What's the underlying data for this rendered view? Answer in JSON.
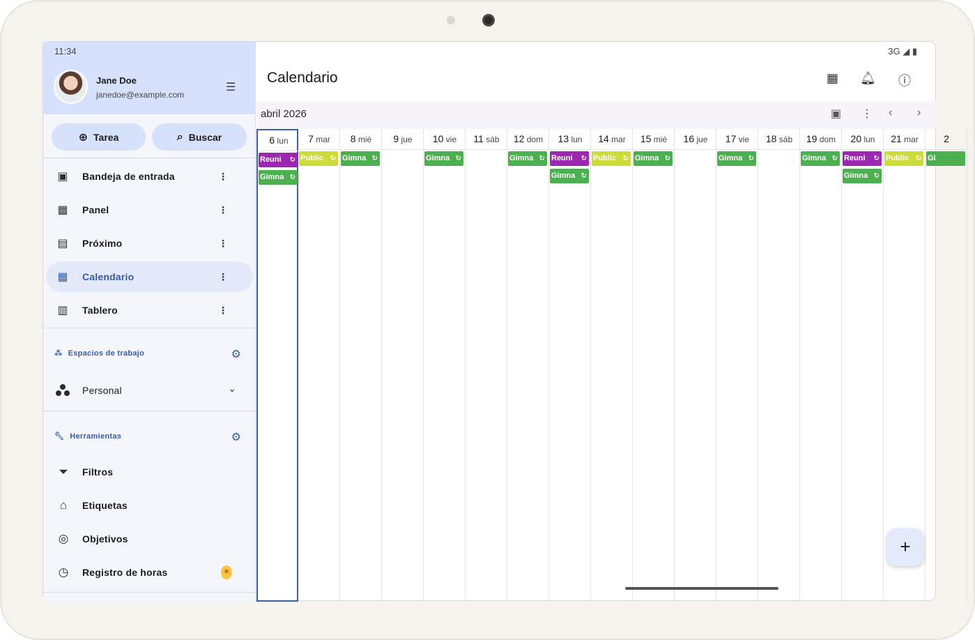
{
  "status": {
    "time": "11:34",
    "network": "3G"
  },
  "user": {
    "name": "Jane Doe",
    "email": "janedoe@example.com"
  },
  "actions": {
    "task": "Tarea",
    "search": "Buscar"
  },
  "nav": [
    {
      "label": "Bandeja de entrada",
      "icon": "inbox-icon"
    },
    {
      "label": "Panel",
      "icon": "dashboard-icon"
    },
    {
      "label": "Próximo",
      "icon": "upcoming-icon"
    },
    {
      "label": "Calendario",
      "icon": "calendar-icon",
      "active": true
    },
    {
      "label": "Tablero",
      "icon": "board-icon"
    }
  ],
  "workspaces": {
    "heading": "Espacios de trabajo",
    "current": "Personal"
  },
  "tools": {
    "heading": "Herramientas",
    "items": [
      {
        "label": "Filtros",
        "icon": "filter-icon"
      },
      {
        "label": "Etiquetas",
        "icon": "tag-icon"
      },
      {
        "label": "Objetivos",
        "icon": "target-icon"
      },
      {
        "label": "Registro de horas",
        "icon": "clock-icon"
      }
    ]
  },
  "main": {
    "title": "Calendario",
    "month": "abril 2026"
  },
  "colors": {
    "meeting": "#9c27b0",
    "public": "#cddc39",
    "gym": "#4caf50",
    "accent": "#3a5ba8"
  },
  "days": [
    {
      "num": "6",
      "dow": "lun",
      "events": [
        "Reuni",
        "Gimna"
      ]
    },
    {
      "num": "7",
      "dow": "mar",
      "events": [
        "Public"
      ]
    },
    {
      "num": "8",
      "dow": "mié",
      "events": [
        "Gimna"
      ]
    },
    {
      "num": "9",
      "dow": "jue",
      "events": []
    },
    {
      "num": "10",
      "dow": "vie",
      "events": [
        "Gimna"
      ]
    },
    {
      "num": "11",
      "dow": "sáb",
      "events": []
    },
    {
      "num": "12",
      "dow": "dom",
      "events": [
        "Gimna"
      ]
    },
    {
      "num": "13",
      "dow": "lun",
      "events": [
        "Reuni",
        "Gimna"
      ]
    },
    {
      "num": "14",
      "dow": "mar",
      "events": [
        "Public"
      ]
    },
    {
      "num": "15",
      "dow": "mié",
      "events": [
        "Gimna"
      ]
    },
    {
      "num": "16",
      "dow": "jue",
      "events": []
    },
    {
      "num": "17",
      "dow": "vie",
      "events": [
        "Gimna"
      ]
    },
    {
      "num": "18",
      "dow": "sáb",
      "events": []
    },
    {
      "num": "19",
      "dow": "dom",
      "events": [
        "Gimna"
      ]
    },
    {
      "num": "20",
      "dow": "lun",
      "events": [
        "Reuni",
        "Gimna"
      ]
    },
    {
      "num": "21",
      "dow": "mar",
      "events": [
        "Public"
      ]
    },
    {
      "num": "2",
      "dow": "",
      "events": [
        "Gi"
      ]
    }
  ]
}
